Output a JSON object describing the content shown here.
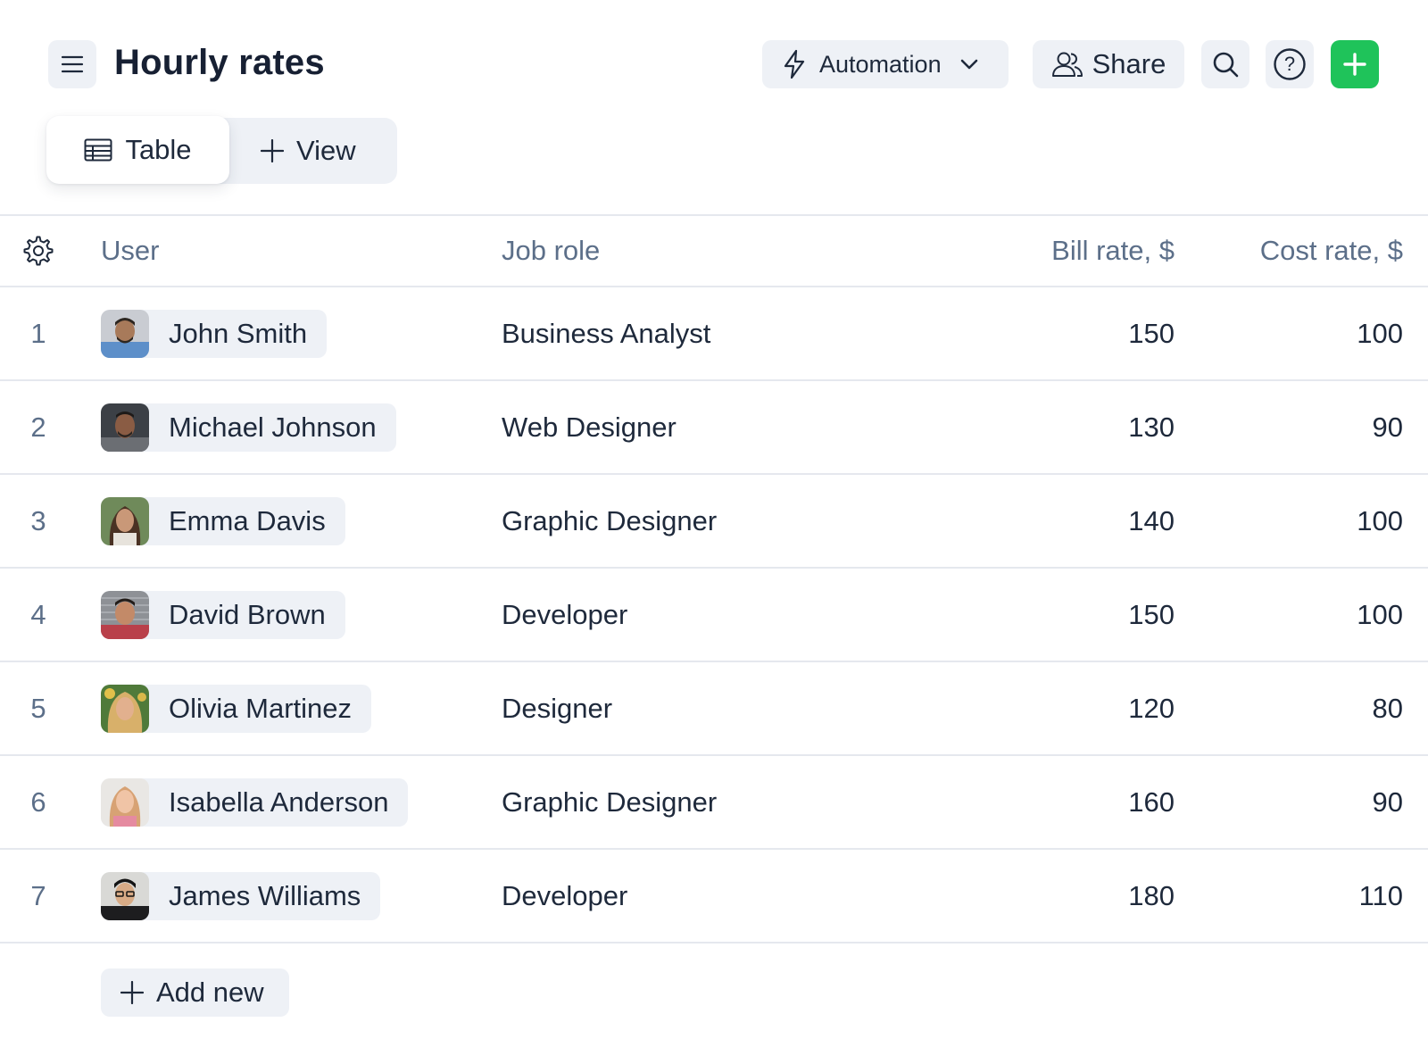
{
  "header": {
    "title": "Hourly rates",
    "automation_label": "Automation",
    "share_label": "Share",
    "accent_color": "#1fc35a"
  },
  "views": {
    "active_tab": "Table",
    "add_view_label": "View"
  },
  "table": {
    "columns": [
      "User",
      "Job role",
      "Bill rate, $",
      "Cost rate, $"
    ],
    "rows": [
      {
        "index": "1",
        "user": "John Smith",
        "role": "Business Analyst",
        "bill": "150",
        "cost": "100"
      },
      {
        "index": "2",
        "user": "Michael Johnson",
        "role": "Web Designer",
        "bill": "130",
        "cost": "90"
      },
      {
        "index": "3",
        "user": "Emma Davis",
        "role": "Graphic Designer",
        "bill": "140",
        "cost": "100"
      },
      {
        "index": "4",
        "user": "David Brown",
        "role": "Developer",
        "bill": "150",
        "cost": "100"
      },
      {
        "index": "5",
        "user": "Olivia Martinez",
        "role": "Designer",
        "bill": "120",
        "cost": "80"
      },
      {
        "index": "6",
        "user": "Isabella Anderson",
        "role": "Graphic Designer",
        "bill": "160",
        "cost": "90"
      },
      {
        "index": "7",
        "user": "James Williams",
        "role": "Developer",
        "bill": "180",
        "cost": "110"
      }
    ],
    "add_new_label": "Add new"
  },
  "icons": [
    "menu-icon",
    "lightning-icon",
    "chevron-down-icon",
    "users-icon",
    "search-icon",
    "help-icon",
    "plus-icon",
    "table-icon",
    "gear-icon",
    "avatar-photo"
  ]
}
